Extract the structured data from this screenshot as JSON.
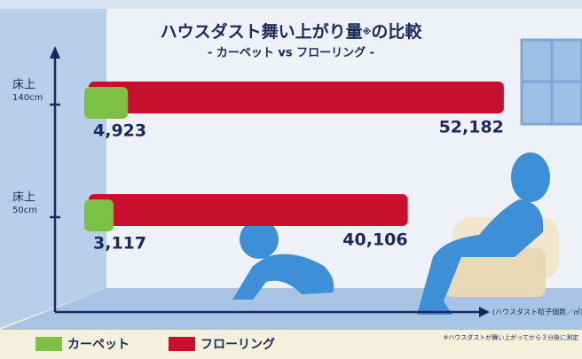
{
  "chart_data": {
    "type": "bar",
    "orientation": "horizontal",
    "title": [
      "ハウスダスト舞い上がり量",
      "※",
      "の比較"
    ],
    "subtitle": "- カーペット vs フローリング -",
    "categories": [
      [
        "床上",
        "140cm"
      ],
      [
        "床上",
        "50cm"
      ]
    ],
    "series": [
      {
        "name": "カーペット",
        "color": "#7cc143",
        "values": [
          4923,
          3117
        ],
        "value_labels": [
          "4,923",
          "3,117"
        ]
      },
      {
        "name": "フローリング",
        "color": "#c8102e",
        "values": [
          52182,
          40106
        ],
        "value_labels": [
          "52,182",
          "40,106"
        ]
      }
    ],
    "xlim": [
      0,
      60000
    ],
    "x_axis_label": "(ハウスダスト粒子個数／㎥)",
    "footnote": "※ハウスダストが舞い上がってから３分後に測定",
    "legend": "bottom-left"
  }
}
